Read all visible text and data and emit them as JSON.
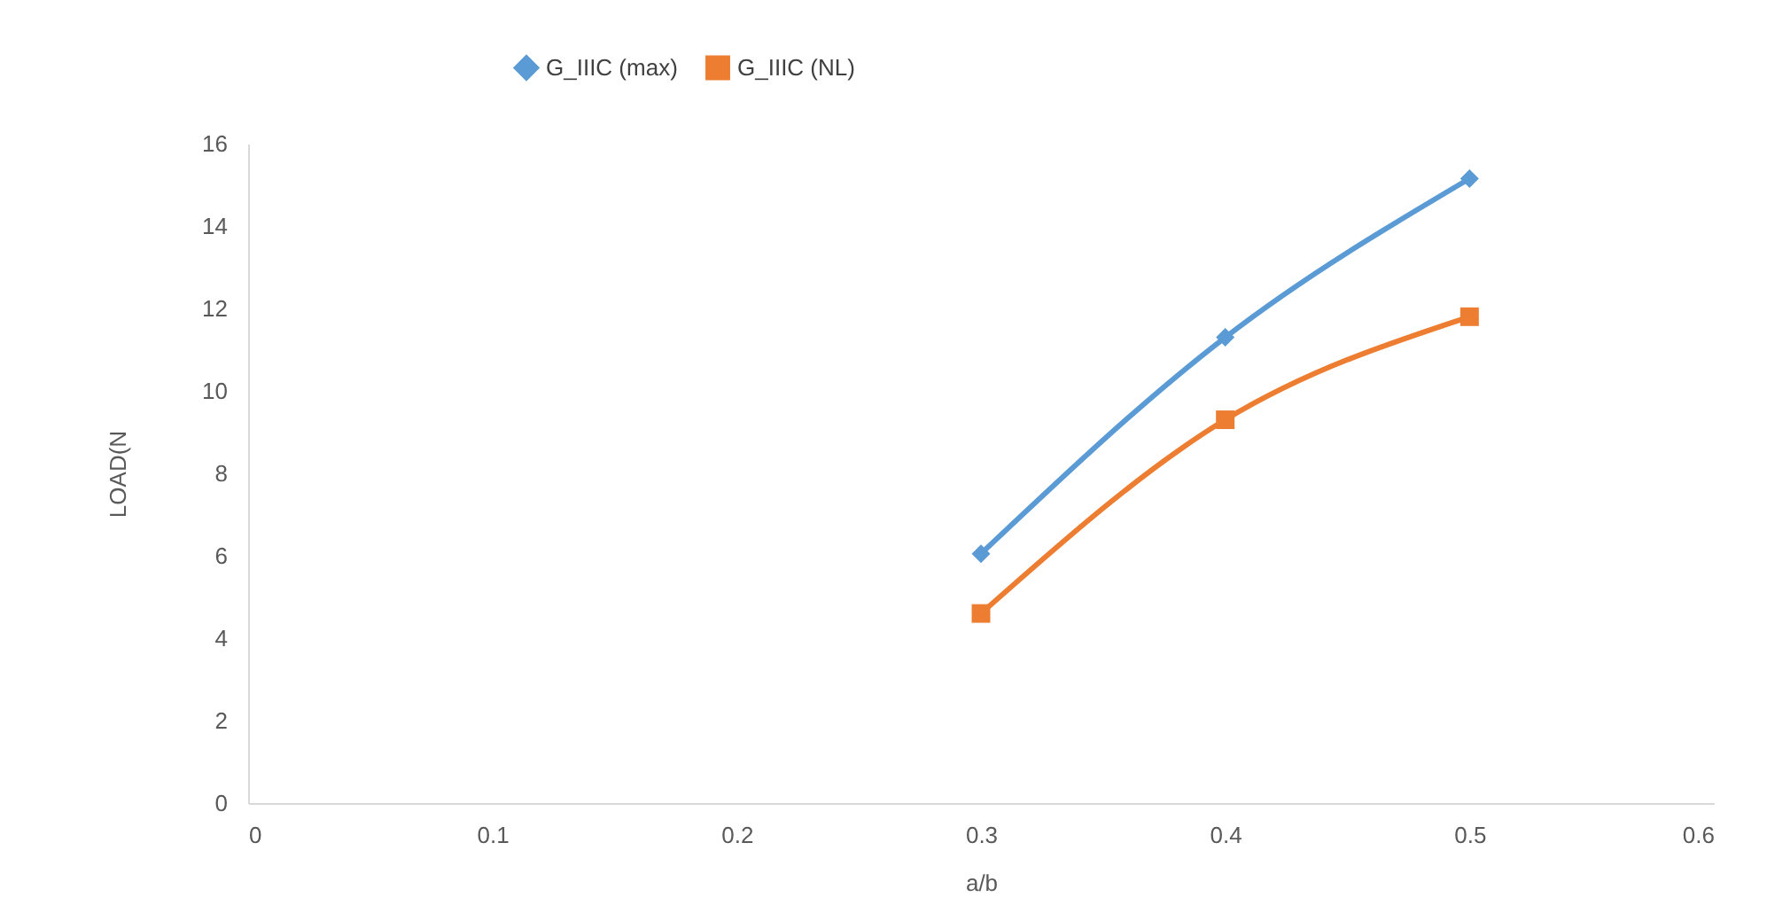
{
  "chart_data": {
    "type": "line",
    "xlabel": "a/b",
    "ylabel": "LOAD(N",
    "x": [
      0.3,
      0.4,
      0.5
    ],
    "series": [
      {
        "name": "G_IIIC (max)",
        "color": "#5b9bd5",
        "values": [
          6.05,
          11.3,
          15.15
        ],
        "marker": "diamond"
      },
      {
        "name": "G_IIIC (NL)",
        "color": "#ed7d31",
        "values": [
          4.6,
          9.3,
          11.8
        ],
        "marker": "square"
      }
    ],
    "xlim": [
      0,
      0.6
    ],
    "xticks": [
      0,
      0.1,
      0.2,
      0.3,
      0.4,
      0.5,
      0.6
    ],
    "ylim": [
      0,
      16
    ],
    "yticks": [
      0,
      2,
      4,
      6,
      8,
      10,
      12,
      14,
      16
    ],
    "grid": false,
    "legend": "top",
    "line_style": "solid"
  }
}
